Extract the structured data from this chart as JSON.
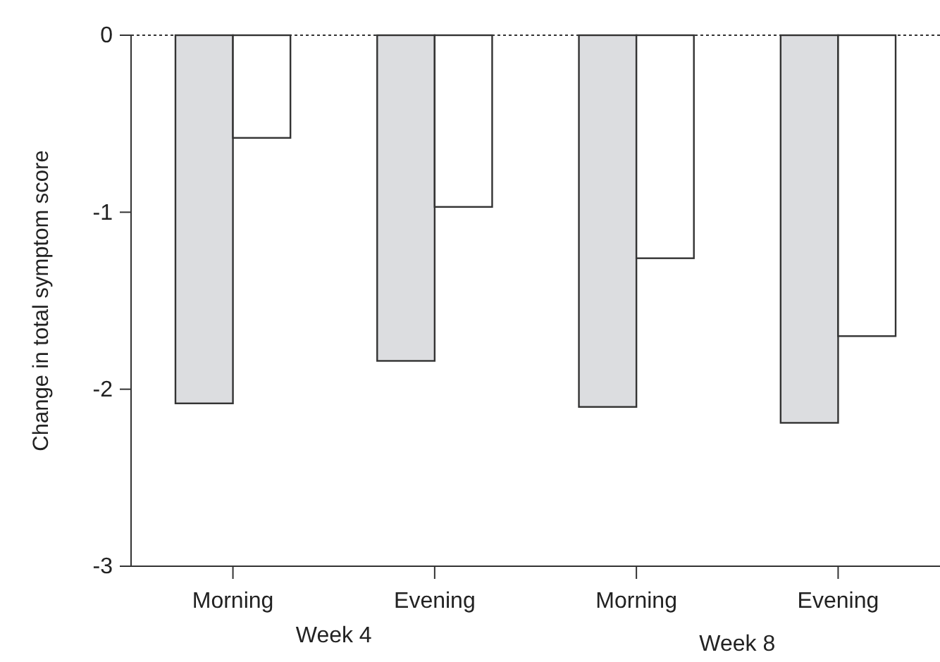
{
  "chart_data": {
    "type": "bar",
    "ylabel": "Change in total symptom score",
    "categories": [
      "Morning",
      "Evening",
      "Morning",
      "Evening"
    ],
    "series": [
      {
        "color": "#dcdde0",
        "values": [
          -2.08,
          -1.84,
          -2.1,
          -2.19
        ]
      },
      {
        "color": "#ffffff",
        "values": [
          -0.58,
          -0.97,
          -1.26,
          -1.7
        ]
      }
    ],
    "ylim": [
      -3,
      0
    ],
    "yticks": [
      -3,
      -2,
      -1,
      0
    ],
    "grid": false,
    "ref_lines": [
      {
        "axis": "y",
        "value": 0,
        "line_style": "dotted",
        "color": "#333333"
      }
    ],
    "annotations": [
      "Week 4",
      "Week 8"
    ]
  }
}
